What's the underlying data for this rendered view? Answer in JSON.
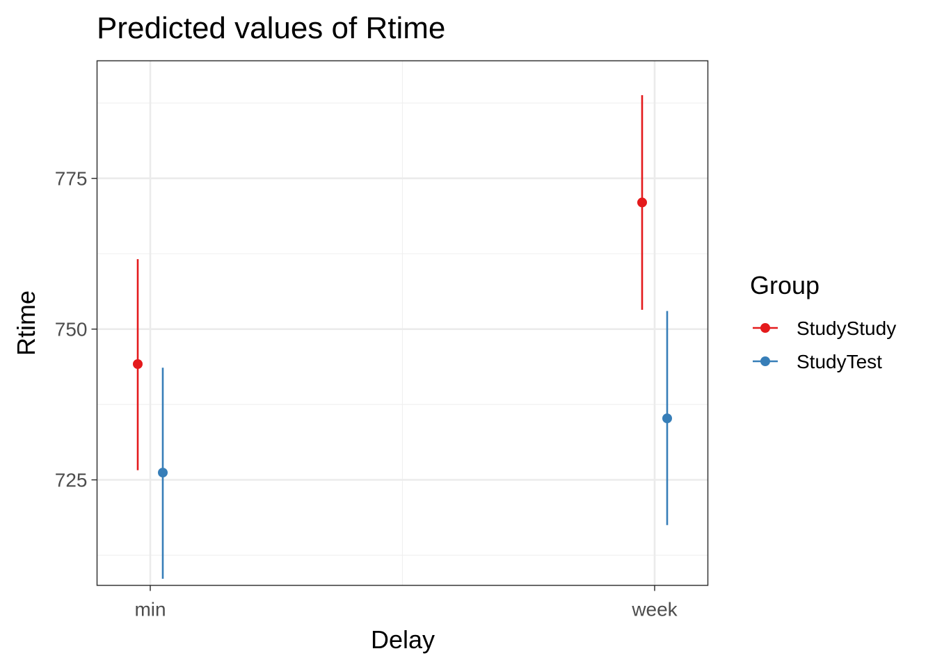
{
  "chart_data": {
    "type": "scatter",
    "title": "Predicted values of Rtime",
    "xlabel": "Delay",
    "ylabel": "Rtime",
    "categories": [
      "min",
      "week"
    ],
    "ylim": [
      707.5,
      794.5
    ],
    "yticks": [
      725,
      750,
      775
    ],
    "grid": true,
    "legend": {
      "title": "Group",
      "position": "right"
    },
    "series": [
      {
        "name": "StudyStudy",
        "color": "#e41a1c",
        "values": [
          744.2,
          771.0
        ],
        "lower": [
          726.6,
          753.2
        ],
        "upper": [
          761.6,
          788.8
        ]
      },
      {
        "name": "StudyTest",
        "color": "#377eb8",
        "values": [
          726.2,
          735.2
        ],
        "lower": [
          708.6,
          717.5
        ],
        "upper": [
          743.6,
          753.0
        ]
      }
    ]
  }
}
